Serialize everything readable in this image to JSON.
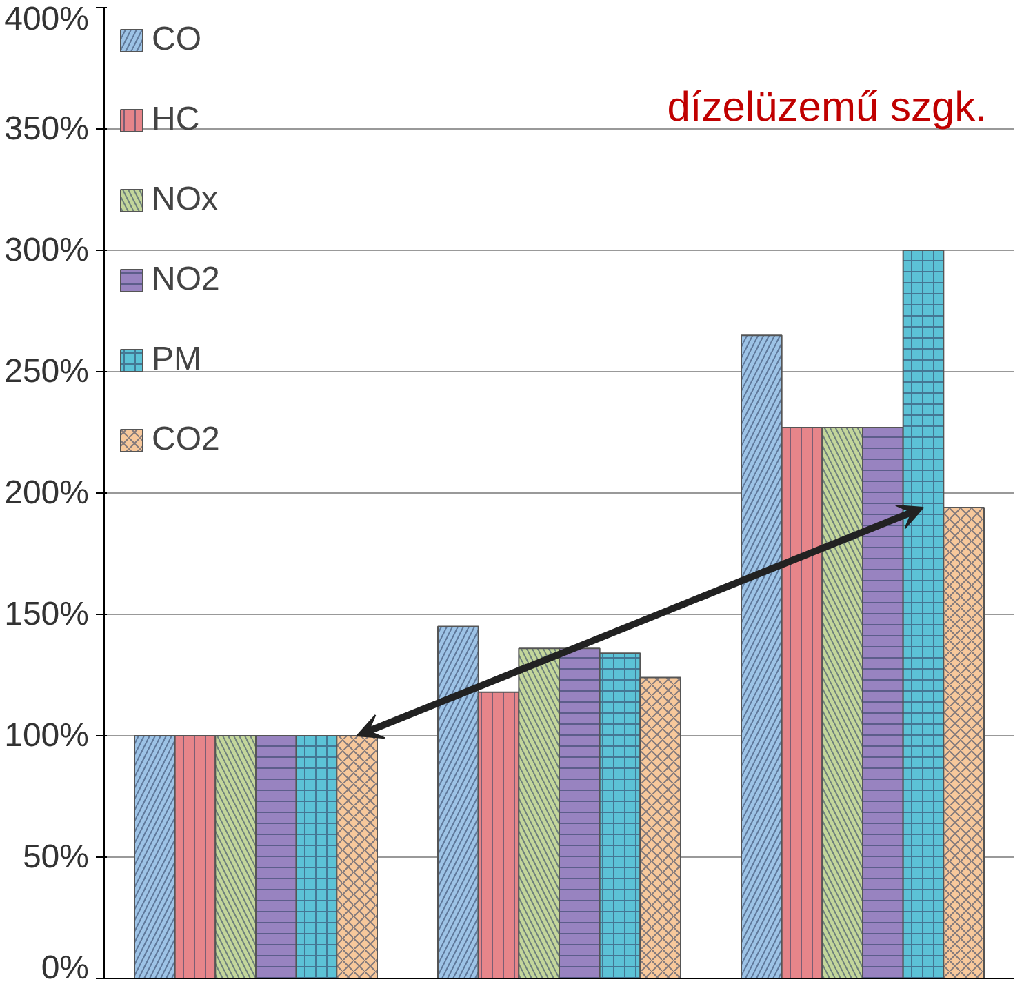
{
  "chart_data": {
    "type": "bar",
    "categories": [
      null,
      null,
      null
    ],
    "series": [
      {
        "name": "CO",
        "color": "#9dc3e6",
        "values": [
          100,
          145,
          265
        ]
      },
      {
        "name": "HC",
        "color": "#e6858a",
        "values": [
          100,
          118,
          227
        ]
      },
      {
        "name": "NOx",
        "color": "#c3d69b",
        "values": [
          100,
          136,
          227
        ]
      },
      {
        "name": "NO2",
        "color": "#9883c0",
        "values": [
          100,
          136,
          227
        ]
      },
      {
        "name": "PM",
        "color": "#5cc2d6",
        "values": [
          100,
          134,
          300
        ]
      },
      {
        "name": "CO2",
        "color": "#f7c89b",
        "values": [
          100,
          124,
          194
        ]
      }
    ],
    "ylim": [
      0,
      400
    ],
    "yticks": [
      {
        "value": 0,
        "label": "0%"
      },
      {
        "value": 50,
        "label": "50%"
      },
      {
        "value": 100,
        "label": "100%"
      },
      {
        "value": 150,
        "label": "150%"
      },
      {
        "value": 200,
        "label": "200%"
      },
      {
        "value": 250,
        "label": "250%"
      },
      {
        "value": 300,
        "label": "300%"
      },
      {
        "value": 350,
        "label": "350%"
      },
      {
        "value": 400,
        "label": "400%"
      }
    ],
    "grid": "y",
    "legend": "top left",
    "annotations": [
      "dízelüzemű szgk."
    ]
  }
}
